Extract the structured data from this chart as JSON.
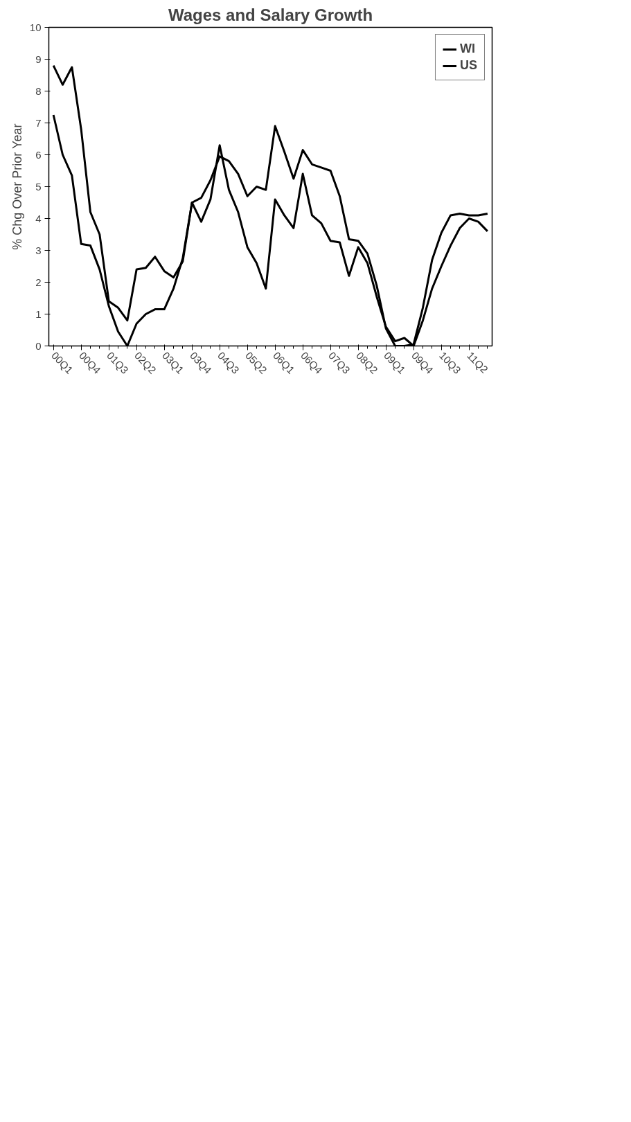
{
  "chart_data": {
    "type": "line",
    "title": "Wages and Salary Growth",
    "ylabel": "% Chg Over Prior Year",
    "categories": [
      "00Q1",
      null,
      null,
      "00Q4",
      null,
      null,
      "01Q3",
      null,
      null,
      "02Q2",
      null,
      null,
      "03Q1",
      null,
      null,
      "03Q4",
      null,
      null,
      "04Q3",
      null,
      null,
      "05Q2",
      null,
      null,
      "06Q1",
      null,
      null,
      "06Q4",
      null,
      null,
      "07Q3",
      null,
      null,
      "08Q2",
      null,
      null,
      "09Q1",
      null,
      null,
      "09Q4",
      null,
      null,
      "10Q3",
      null,
      null,
      "11Q2",
      null,
      null
    ],
    "series": [
      {
        "name": "WI",
        "color": "#000000",
        "values": [
          8.8,
          8.2,
          8.75,
          6.8,
          4.2,
          3.5,
          1.4,
          1.2,
          0.8,
          2.4,
          2.45,
          2.8,
          2.35,
          2.15,
          2.65,
          4.5,
          3.9,
          4.6,
          6.3,
          4.9,
          4.2,
          3.1,
          2.6,
          1.8,
          4.6,
          4.1,
          3.7,
          5.4,
          4.1,
          3.85,
          3.3,
          3.25,
          2.2,
          3.1,
          2.6,
          1.55,
          0.6,
          0.15,
          0.25,
          0.0,
          0.8,
          1.8,
          2.5,
          3.15,
          3.7,
          4.0,
          3.9,
          3.6
        ]
      },
      {
        "name": "US",
        "color": "#000000",
        "values": [
          7.25,
          6.0,
          5.35,
          3.2,
          3.15,
          2.4,
          1.25,
          0.45,
          0.0,
          0.7,
          1.0,
          1.15,
          1.15,
          1.8,
          2.75,
          4.5,
          4.65,
          5.2,
          5.95,
          5.8,
          5.4,
          4.7,
          5.0,
          4.9,
          6.9,
          6.1,
          5.25,
          6.15,
          5.7,
          5.6,
          5.5,
          4.7,
          3.35,
          3.3,
          2.9,
          1.9,
          0.55,
          0.0,
          0.0,
          0.05,
          1.2,
          2.7,
          3.55,
          4.1,
          4.15,
          4.1,
          4.1,
          4.15
        ]
      }
    ],
    "ylim": [
      0,
      10
    ],
    "yticks": [
      0,
      1,
      2,
      3,
      4,
      5,
      6,
      7,
      8,
      9,
      10
    ],
    "grid": false,
    "legend": "right",
    "line_style": "solid",
    "marker": "none"
  }
}
